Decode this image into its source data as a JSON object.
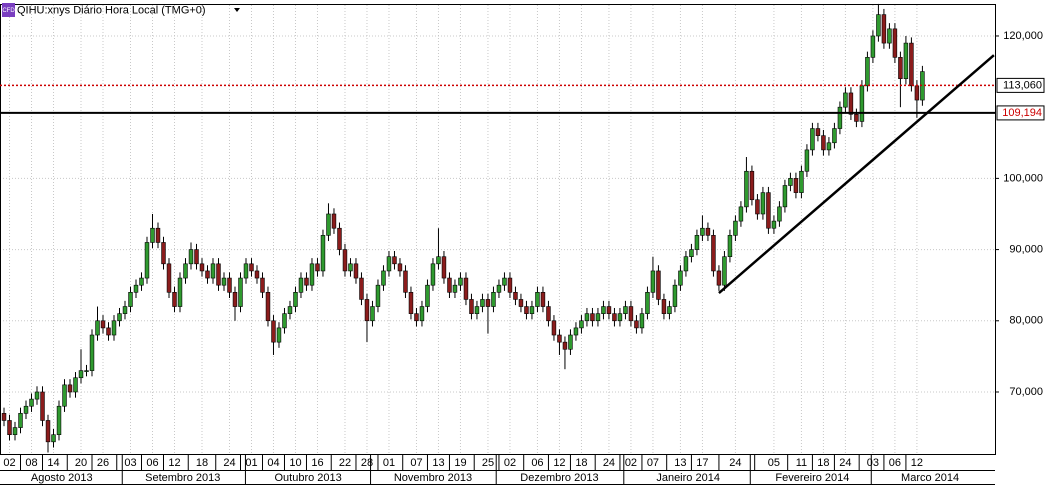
{
  "chart_data": {
    "type": "candlestick",
    "title": "QIHU:xnys Diário Hora Local (TMG+0)",
    "badge": "CFD",
    "up_color": "#2f9a2f",
    "down_color": "#8b1c1c",
    "ylim": [
      61150,
      124350
    ],
    "yticks": [
      {
        "value": 70000,
        "label": "70,000"
      },
      {
        "value": 80000,
        "label": "80,000"
      },
      {
        "value": 90000,
        "label": "90,000"
      },
      {
        "value": 100000,
        "label": "100,000"
      },
      {
        "value": 120000,
        "label": "120,000"
      }
    ],
    "xlim": [
      -0.73,
      180.2
    ],
    "xticks": [
      {
        "value": 1,
        "label": "02"
      },
      {
        "value": 5,
        "label": "08"
      },
      {
        "value": 9,
        "label": "14"
      },
      {
        "value": 14,
        "label": "20"
      },
      {
        "value": 18,
        "label": "26"
      },
      {
        "value": 23,
        "label": "03"
      },
      {
        "value": 27,
        "label": "06"
      },
      {
        "value": 31,
        "label": "12"
      },
      {
        "value": 36,
        "label": "18"
      },
      {
        "value": 41,
        "label": "24"
      },
      {
        "value": 45,
        "label": "01"
      },
      {
        "value": 49,
        "label": "04"
      },
      {
        "value": 53,
        "label": "10"
      },
      {
        "value": 57,
        "label": "16"
      },
      {
        "value": 62,
        "label": "22"
      },
      {
        "value": 66,
        "label": "28"
      },
      {
        "value": 70,
        "label": "01"
      },
      {
        "value": 75,
        "label": "07"
      },
      {
        "value": 79,
        "label": "13"
      },
      {
        "value": 83,
        "label": "19"
      },
      {
        "value": 88,
        "label": "25"
      },
      {
        "value": 92,
        "label": "02"
      },
      {
        "value": 97,
        "label": "06"
      },
      {
        "value": 101,
        "label": "12"
      },
      {
        "value": 105,
        "label": "18"
      },
      {
        "value": 110,
        "label": "24"
      },
      {
        "value": 114,
        "label": "02"
      },
      {
        "value": 118,
        "label": "07"
      },
      {
        "value": 123,
        "label": "13"
      },
      {
        "value": 127,
        "label": "17"
      },
      {
        "value": 133,
        "label": "24"
      },
      {
        "value": 140,
        "label": "05"
      },
      {
        "value": 145,
        "label": "11"
      },
      {
        "value": 149,
        "label": "18"
      },
      {
        "value": 153,
        "label": "24"
      },
      {
        "value": 158,
        "label": "03"
      },
      {
        "value": 162,
        "label": "06"
      },
      {
        "value": 166,
        "label": "12"
      }
    ],
    "months": [
      {
        "value": 10.5,
        "label": "Agosto 2013"
      },
      {
        "value": 32.5,
        "label": "Setembro 2013"
      },
      {
        "value": 55.3,
        "label": "Outubro 2013"
      },
      {
        "value": 78,
        "label": "Novembro 2013"
      },
      {
        "value": 101,
        "label": "Dezembro 2013"
      },
      {
        "value": 124.4,
        "label": "Janeiro 2014"
      },
      {
        "value": 147,
        "label": "Fevereiro 2014"
      },
      {
        "value": 168.4,
        "label": "Marco 2014"
      }
    ],
    "grid": true,
    "hlines": [
      {
        "value": 113060,
        "label": "113,060",
        "color": "#cc0000",
        "label_color": "#000000",
        "style": "dotted"
      },
      {
        "value": 109194,
        "label": "109,194",
        "color": "#000000",
        "label_color": "#cc0000",
        "style": "solid"
      }
    ],
    "trendline": {
      "x": [
        130,
        180
      ],
      "y": [
        83900,
        117300
      ]
    },
    "ohlc": [
      [
        67000,
        67800,
        65200,
        66000
      ],
      [
        66000,
        66800,
        63200,
        64000
      ],
      [
        64000,
        65800,
        63200,
        65000
      ],
      [
        65000,
        67800,
        64200,
        67000
      ],
      [
        67000,
        68800,
        66200,
        68000
      ],
      [
        68000,
        69800,
        67200,
        69000
      ],
      [
        69000,
        70800,
        68200,
        70000
      ],
      [
        70000,
        70800,
        65200,
        66000
      ],
      [
        66000,
        66800,
        61500,
        63000
      ],
      [
        63000,
        64800,
        62200,
        64000
      ],
      [
        64000,
        68800,
        63200,
        68000
      ],
      [
        68000,
        71800,
        67200,
        71000
      ],
      [
        71000,
        71800,
        69200,
        70000
      ],
      [
        70000,
        72800,
        69200,
        72000
      ],
      [
        72000,
        76000,
        71200,
        73000
      ],
      [
        73000,
        73800,
        72200,
        73000
      ],
      [
        73000,
        78800,
        72200,
        78000
      ],
      [
        78000,
        82000,
        77200,
        80000
      ],
      [
        80000,
        80800,
        78200,
        79000
      ],
      [
        79000,
        79800,
        77200,
        78000
      ],
      [
        78000,
        80800,
        77200,
        80000
      ],
      [
        80000,
        81800,
        79200,
        81000
      ],
      [
        81000,
        82800,
        80200,
        82000
      ],
      [
        82000,
        84800,
        81200,
        84000
      ],
      [
        84000,
        85800,
        83200,
        85000
      ],
      [
        85000,
        86800,
        84200,
        86000
      ],
      [
        86000,
        91800,
        85200,
        91000
      ],
      [
        91000,
        95000,
        90200,
        93000
      ],
      [
        93000,
        93800,
        90200,
        91000
      ],
      [
        91000,
        91800,
        87200,
        88000
      ],
      [
        88000,
        88800,
        83200,
        84000
      ],
      [
        84000,
        84800,
        81200,
        82000
      ],
      [
        82000,
        86800,
        81200,
        86000
      ],
      [
        86000,
        88800,
        85200,
        88000
      ],
      [
        88000,
        91000,
        87200,
        90000
      ],
      [
        90000,
        90800,
        87200,
        88000
      ],
      [
        88000,
        88800,
        86200,
        87000
      ],
      [
        87000,
        87800,
        85200,
        86000
      ],
      [
        86000,
        88800,
        85200,
        88000
      ],
      [
        88000,
        88800,
        84200,
        85000
      ],
      [
        85000,
        86800,
        84200,
        86000
      ],
      [
        86000,
        86800,
        83200,
        84000
      ],
      [
        84000,
        84800,
        80000,
        82000
      ],
      [
        82000,
        86800,
        81200,
        86000
      ],
      [
        86000,
        88800,
        85200,
        88000
      ],
      [
        88000,
        88800,
        86200,
        87000
      ],
      [
        87000,
        87800,
        85200,
        86000
      ],
      [
        86000,
        86800,
        83200,
        84000
      ],
      [
        84000,
        84800,
        79200,
        80000
      ],
      [
        80000,
        80800,
        75200,
        77000
      ],
      [
        77000,
        79800,
        76200,
        79000
      ],
      [
        79000,
        81800,
        78200,
        81000
      ],
      [
        81000,
        82800,
        80200,
        82000
      ],
      [
        82000,
        84800,
        81200,
        84000
      ],
      [
        84000,
        86800,
        83200,
        86000
      ],
      [
        86000,
        86800,
        84200,
        85000
      ],
      [
        85000,
        88800,
        84200,
        88000
      ],
      [
        88000,
        88800,
        86200,
        87000
      ],
      [
        87000,
        92800,
        86200,
        92000
      ],
      [
        92000,
        96500,
        91200,
        95000
      ],
      [
        95000,
        95800,
        92200,
        93000
      ],
      [
        93000,
        93800,
        89200,
        90000
      ],
      [
        90000,
        90800,
        86200,
        87000
      ],
      [
        87000,
        88800,
        86200,
        88000
      ],
      [
        88000,
        88800,
        85200,
        86000
      ],
      [
        86000,
        86800,
        82200,
        83000
      ],
      [
        83000,
        83800,
        77000,
        80000
      ],
      [
        80000,
        82800,
        79200,
        82000
      ],
      [
        82000,
        85800,
        81200,
        85000
      ],
      [
        85000,
        87800,
        84200,
        87000
      ],
      [
        87000,
        89800,
        86200,
        89000
      ],
      [
        89000,
        89800,
        87200,
        88000
      ],
      [
        88000,
        88800,
        86200,
        87000
      ],
      [
        87000,
        87800,
        83200,
        84000
      ],
      [
        84000,
        84800,
        80200,
        81000
      ],
      [
        81000,
        81800,
        79200,
        80000
      ],
      [
        80000,
        82800,
        79200,
        82000
      ],
      [
        82000,
        85800,
        81200,
        85000
      ],
      [
        85000,
        88800,
        84200,
        88000
      ],
      [
        88000,
        93000,
        87200,
        89000
      ],
      [
        89000,
        89800,
        85200,
        86000
      ],
      [
        86000,
        86800,
        83200,
        84000
      ],
      [
        84000,
        85800,
        83200,
        85000
      ],
      [
        85000,
        86800,
        84200,
        86000
      ],
      [
        86000,
        86800,
        82200,
        83000
      ],
      [
        83000,
        83800,
        80200,
        81000
      ],
      [
        81000,
        82800,
        80200,
        82000
      ],
      [
        82000,
        83800,
        81200,
        83000
      ],
      [
        83000,
        83800,
        78200,
        82000
      ],
      [
        82000,
        84800,
        81200,
        84000
      ],
      [
        84000,
        85800,
        83200,
        85000
      ],
      [
        85000,
        86800,
        84200,
        86000
      ],
      [
        86000,
        86800,
        83200,
        84000
      ],
      [
        84000,
        84800,
        82200,
        83000
      ],
      [
        83000,
        83800,
        81200,
        82000
      ],
      [
        82000,
        82800,
        80200,
        81000
      ],
      [
        81000,
        82800,
        80200,
        82000
      ],
      [
        82000,
        84800,
        81200,
        84000
      ],
      [
        84000,
        84800,
        81200,
        82000
      ],
      [
        82000,
        82800,
        79200,
        80000
      ],
      [
        80000,
        80800,
        77200,
        78000
      ],
      [
        78000,
        78800,
        75200,
        77000
      ],
      [
        77000,
        77800,
        73200,
        76000
      ],
      [
        76000,
        78800,
        75200,
        78000
      ],
      [
        78000,
        79800,
        77200,
        79000
      ],
      [
        79000,
        80800,
        78200,
        80000
      ],
      [
        80000,
        81800,
        79200,
        81000
      ],
      [
        81000,
        81800,
        79200,
        80000
      ],
      [
        80000,
        81800,
        79200,
        81000
      ],
      [
        81000,
        82800,
        80200,
        82000
      ],
      [
        82000,
        82800,
        80200,
        81000
      ],
      [
        81000,
        81800,
        79200,
        80000
      ],
      [
        80000,
        81800,
        79200,
        81000
      ],
      [
        81000,
        82800,
        80200,
        82000
      ],
      [
        82000,
        82800,
        79200,
        80000
      ],
      [
        80000,
        80800,
        78200,
        79000
      ],
      [
        79000,
        81800,
        78200,
        81000
      ],
      [
        81000,
        84800,
        80200,
        84000
      ],
      [
        84000,
        89000,
        83200,
        87000
      ],
      [
        87000,
        87800,
        82200,
        83000
      ],
      [
        83000,
        83800,
        80200,
        81000
      ],
      [
        81000,
        82800,
        80200,
        82000
      ],
      [
        82000,
        85800,
        81200,
        85000
      ],
      [
        85000,
        87800,
        84200,
        87000
      ],
      [
        87000,
        89800,
        86200,
        89000
      ],
      [
        89000,
        90800,
        88200,
        90000
      ],
      [
        90000,
        92800,
        89200,
        92000
      ],
      [
        92000,
        94800,
        91200,
        93000
      ],
      [
        93000,
        93800,
        91200,
        92000
      ],
      [
        92000,
        92800,
        86200,
        87000
      ],
      [
        87000,
        87800,
        84200,
        85000
      ],
      [
        85000,
        89800,
        84200,
        89000
      ],
      [
        89000,
        92800,
        88200,
        92000
      ],
      [
        92000,
        94800,
        91200,
        94000
      ],
      [
        94000,
        96800,
        93200,
        96000
      ],
      [
        96000,
        103000,
        95200,
        101000
      ],
      [
        101000,
        101800,
        96200,
        97000
      ],
      [
        97000,
        97800,
        94200,
        95000
      ],
      [
        95000,
        98800,
        94200,
        98000
      ],
      [
        98000,
        98800,
        92200,
        93000
      ],
      [
        93000,
        94800,
        92200,
        94000
      ],
      [
        94000,
        96800,
        93200,
        96000
      ],
      [
        96000,
        99800,
        95200,
        99000
      ],
      [
        99000,
        100800,
        98200,
        100000
      ],
      [
        100000,
        100800,
        97200,
        98000
      ],
      [
        98000,
        101800,
        97200,
        101000
      ],
      [
        101000,
        104800,
        100200,
        104000
      ],
      [
        104000,
        107800,
        103200,
        107000
      ],
      [
        107000,
        107800,
        105200,
        106000
      ],
      [
        106000,
        106800,
        103200,
        104000
      ],
      [
        104000,
        105800,
        103200,
        105000
      ],
      [
        105000,
        107800,
        104200,
        107000
      ],
      [
        107000,
        110800,
        106200,
        110000
      ],
      [
        110000,
        112800,
        109200,
        112000
      ],
      [
        112000,
        112800,
        108200,
        109000
      ],
      [
        109000,
        109800,
        107200,
        108000
      ],
      [
        108000,
        113800,
        107200,
        113000
      ],
      [
        113000,
        117800,
        112200,
        117000
      ],
      [
        117000,
        120800,
        116200,
        120000
      ],
      [
        120000,
        124500,
        119200,
        123000
      ],
      [
        123000,
        123800,
        118200,
        119000
      ],
      [
        119000,
        121800,
        118200,
        121000
      ],
      [
        121000,
        121800,
        116200,
        117000
      ],
      [
        117000,
        117800,
        110000,
        114000
      ],
      [
        114000,
        120000,
        113200,
        119000
      ],
      [
        119000,
        119800,
        112200,
        113000
      ],
      [
        113000,
        113800,
        108500,
        111000
      ],
      [
        111000,
        115800,
        110200,
        115000
      ]
    ]
  }
}
